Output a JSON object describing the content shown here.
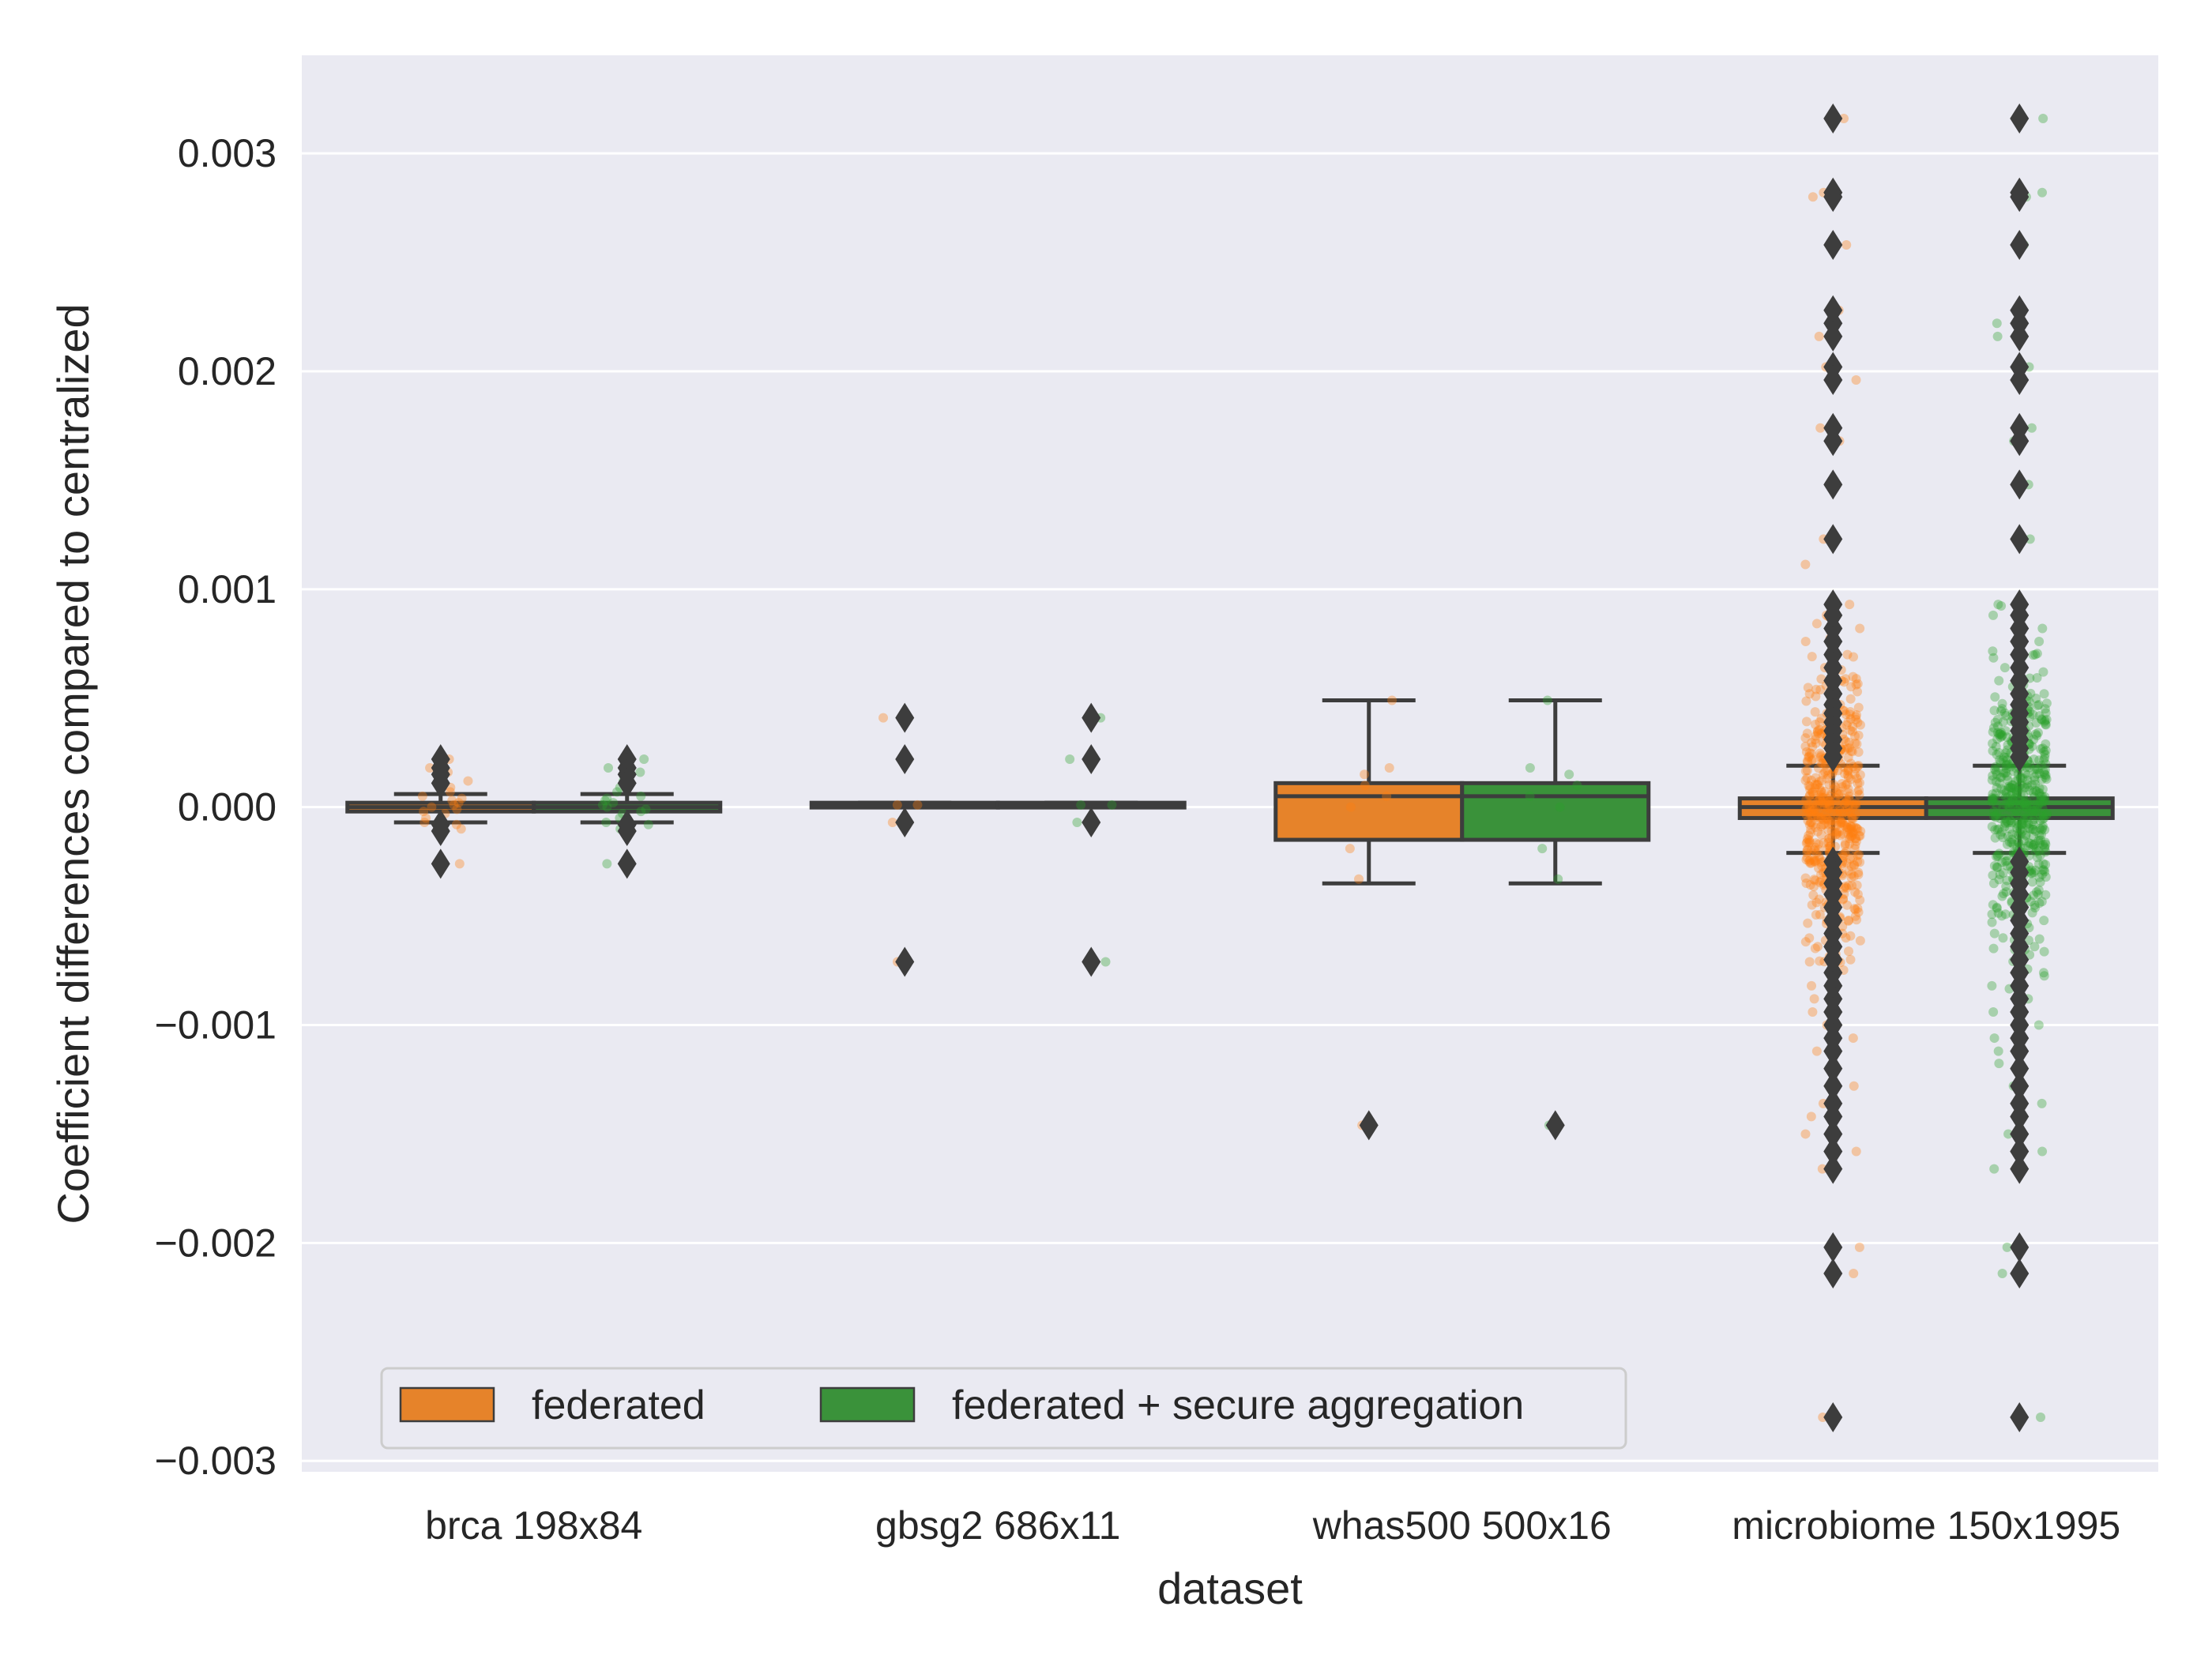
{
  "chart_data": {
    "type": "boxplot",
    "xlabel": "dataset",
    "ylabel": "Coefficient differences compared to centralized",
    "ylim": [
      -0.00305,
      0.00345
    ],
    "yticks": [
      0.003,
      0.002,
      0.001,
      0.0,
      -0.001,
      -0.002,
      -0.003
    ],
    "ytick_labels": [
      "0.003",
      "0.002",
      "0.001",
      "0.000",
      "−0.001",
      "−0.002",
      "−0.003"
    ],
    "grid": true,
    "legend_position": "lower-left",
    "categories": [
      "brca 198x84",
      "gbsg2 686x11",
      "whas500 500x16",
      "microbiome 150x1995"
    ],
    "colors": {
      "background": "#eaeaf2",
      "grid": "#ffffff",
      "box_edge": "#3d3d3d",
      "federated": "#e6832a",
      "federated_secure": "#3a923a",
      "federated_points": "#ff7f0e",
      "federated_secure_points": "#2ca02c"
    },
    "series": [
      {
        "name": "federated",
        "boxes": [
          {
            "q1": -2e-05,
            "median": 0.0,
            "q3": 2e-05,
            "whislo": -7e-05,
            "whishi": 6e-05,
            "outliers": [
              0.00022,
              0.00018,
              0.00015,
              0.00011,
              -8e-05,
              -0.00011,
              -0.00026
            ],
            "points": [
              0.00022,
              0.00018,
              0.00016,
              0.00012,
              9e-05,
              7e-05,
              5e-05,
              4e-05,
              3e-05,
              2e-05,
              1e-05,
              0.0,
              -1e-05,
              -2e-05,
              -3e-05,
              -5e-05,
              -7e-05,
              -8e-05,
              -0.0001,
              -0.00026
            ]
          },
          {
            "q1": 0.0,
            "median": 1e-05,
            "q3": 2e-05,
            "whislo": 0.0,
            "whishi": 2e-05,
            "outliers": [
              0.00041,
              0.00022,
              -7e-05,
              -0.00071
            ],
            "points": [
              0.00041,
              0.00022,
              1e-05,
              1e-05,
              -7e-05,
              -0.00071
            ]
          },
          {
            "q1": -0.00015,
            "median": 5e-05,
            "q3": 0.00011,
            "whislo": -0.00035,
            "whishi": 0.00049,
            "outliers": [
              -0.00146
            ],
            "points": [
              0.00049,
              0.00018,
              0.00015,
              0.0001,
              5e-05,
              0.0,
              -0.00019,
              -0.00033,
              -0.00146
            ]
          },
          {
            "q1": -5e-05,
            "median": 0.0,
            "q3": 4e-05,
            "whislo": -0.00021,
            "whishi": 0.00019,
            "outliers": [
              0.00316,
              0.00282,
              0.0028,
              0.00258,
              0.00228,
              0.00222,
              0.00216,
              0.00202,
              0.00196,
              0.00174,
              0.00168,
              0.00148,
              0.00123,
              0.00093,
              0.00088,
              0.00082,
              0.00076,
              0.0007,
              0.00064,
              0.00058,
              0.00052,
              0.00047,
              0.00043,
              0.00039,
              0.00035,
              0.00031,
              0.00027,
              0.00023,
              -0.00025,
              -0.0003,
              -0.00035,
              -0.0004,
              -0.00046,
              -0.00052,
              -0.00058,
              -0.00064,
              -0.0007,
              -0.00076,
              -0.00082,
              -0.00088,
              -0.00094,
              -0.001,
              -0.00106,
              -0.00112,
              -0.0012,
              -0.00128,
              -0.00136,
              -0.00142,
              -0.0015,
              -0.00158,
              -0.00166,
              -0.00202,
              -0.00214,
              -0.0028
            ],
            "points_spread": 0.00065,
            "points_count": 480
          }
        ]
      },
      {
        "name": "federated + secure aggregation",
        "boxes": [
          {
            "q1": -2e-05,
            "median": 0.0,
            "q3": 2e-05,
            "whislo": -7e-05,
            "whishi": 6e-05,
            "outliers": [
              0.00022,
              0.00018,
              0.00015,
              0.00011,
              -8e-05,
              -0.00011,
              -0.00026
            ],
            "points": [
              0.00022,
              0.00018,
              0.00016,
              0.00012,
              9e-05,
              7e-05,
              5e-05,
              4e-05,
              3e-05,
              2e-05,
              1e-05,
              0.0,
              -1e-05,
              -2e-05,
              -3e-05,
              -5e-05,
              -7e-05,
              -8e-05,
              -0.0001,
              -0.00026
            ]
          },
          {
            "q1": 0.0,
            "median": 1e-05,
            "q3": 2e-05,
            "whislo": 0.0,
            "whishi": 2e-05,
            "outliers": [
              0.00041,
              0.00022,
              -7e-05,
              -0.00071
            ],
            "points": [
              0.00041,
              0.00022,
              1e-05,
              1e-05,
              -7e-05,
              -0.00071
            ]
          },
          {
            "q1": -0.00015,
            "median": 5e-05,
            "q3": 0.00011,
            "whislo": -0.00035,
            "whishi": 0.00049,
            "outliers": [
              -0.00146
            ],
            "points": [
              0.00049,
              0.00018,
              0.00015,
              0.0001,
              5e-05,
              0.0,
              -0.00019,
              -0.00033,
              -0.00146
            ]
          },
          {
            "q1": -5e-05,
            "median": 0.0,
            "q3": 4e-05,
            "whislo": -0.00021,
            "whishi": 0.00019,
            "outliers": [
              0.00316,
              0.00282,
              0.0028,
              0.00258,
              0.00228,
              0.00222,
              0.00216,
              0.00202,
              0.00196,
              0.00174,
              0.00168,
              0.00148,
              0.00123,
              0.00093,
              0.00088,
              0.00082,
              0.00076,
              0.0007,
              0.00064,
              0.00058,
              0.00052,
              0.00047,
              0.00043,
              0.00039,
              0.00035,
              0.00031,
              0.00027,
              0.00023,
              -0.00025,
              -0.0003,
              -0.00035,
              -0.0004,
              -0.00046,
              -0.00052,
              -0.00058,
              -0.00064,
              -0.0007,
              -0.00076,
              -0.00082,
              -0.00088,
              -0.00094,
              -0.001,
              -0.00106,
              -0.00112,
              -0.0012,
              -0.00128,
              -0.00136,
              -0.00142,
              -0.0015,
              -0.00158,
              -0.00166,
              -0.00202,
              -0.00214,
              -0.0028
            ],
            "points_spread": 0.00065,
            "points_count": 480
          }
        ]
      }
    ]
  }
}
